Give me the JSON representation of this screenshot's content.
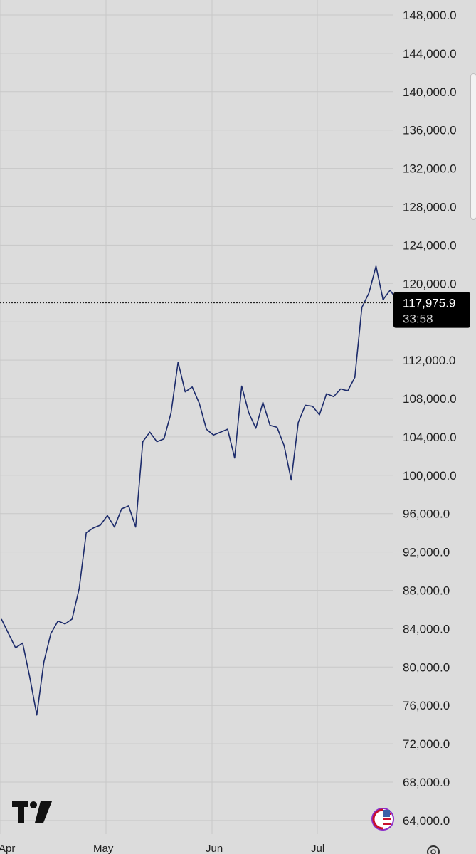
{
  "chart_data": {
    "type": "line",
    "title": "",
    "xlabel": "",
    "ylabel": "",
    "x_ticks": [
      "Apr",
      "May",
      "Jun",
      "Jul"
    ],
    "y_ticks": [
      "148,000.0",
      "144,000.0",
      "140,000.0",
      "136,000.0",
      "132,000.0",
      "128,000.0",
      "124,000.0",
      "120,000.0",
      "112,000.0",
      "108,000.0",
      "104,000.0",
      "100,000.0",
      "96,000.0",
      "92,000.0",
      "88,000.0",
      "84,000.0",
      "80,000.0",
      "76,000.0",
      "72,000.0",
      "68,000.0",
      "64,000.0"
    ],
    "ylim": [
      62000,
      150000
    ],
    "grid": true,
    "line_color": "#1c2b6b",
    "current_price": 117975.9,
    "current_price_label": "117,975.9",
    "countdown": "33:58",
    "series": [
      {
        "x": [
          "Apr 1",
          "Apr 3",
          "Apr 5",
          "Apr 7",
          "Apr 9",
          "Apr 11",
          "Apr 13",
          "Apr 15",
          "Apr 17",
          "Apr 19",
          "Apr 21",
          "Apr 23",
          "Apr 25",
          "Apr 27",
          "Apr 29",
          "May 1",
          "May 3",
          "May 5",
          "May 7",
          "May 9",
          "May 11",
          "May 13",
          "May 15",
          "May 17",
          "May 19",
          "May 21",
          "May 23",
          "May 25",
          "May 27",
          "May 29",
          "May 31",
          "Jun 2",
          "Jun 4",
          "Jun 6",
          "Jun 8",
          "Jun 10",
          "Jun 12",
          "Jun 14",
          "Jun 16",
          "Jun 18",
          "Jun 20",
          "Jun 22",
          "Jun 24",
          "Jun 26",
          "Jun 28",
          "Jun 30",
          "Jul 2",
          "Jul 4",
          "Jul 6",
          "Jul 8",
          "Jul 10",
          "Jul 12",
          "Jul 14",
          "Jul 16",
          "Jul 18",
          "Jul 20",
          "Jul 22"
        ],
        "values": [
          85000,
          83500,
          82000,
          82500,
          79000,
          75000,
          80500,
          83500,
          84800,
          84500,
          85000,
          88200,
          94000,
          94500,
          94800,
          95800,
          94600,
          96500,
          96800,
          94600,
          103500,
          104500,
          103500,
          103800,
          106500,
          111800,
          108700,
          109200,
          107500,
          104800,
          104200,
          104500,
          104800,
          101800,
          109300,
          106500,
          104900,
          107600,
          105200,
          105000,
          103100,
          99500,
          105500,
          107300,
          107200,
          106300,
          108500,
          108200,
          109000,
          108800,
          110200,
          117500,
          119000,
          121800,
          118300,
          119300,
          118200
        ]
      }
    ]
  },
  "icons": [
    "tradingview-logo",
    "us-flag-icon",
    "settings-icon"
  ]
}
